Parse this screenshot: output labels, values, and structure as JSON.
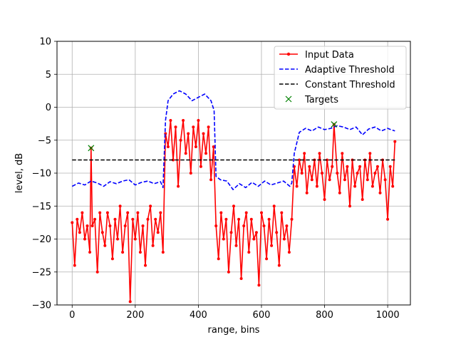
{
  "chart_data": {
    "type": "line",
    "title": "",
    "xlabel": "range, bins",
    "ylabel": "level, dB",
    "xlim": [
      -48,
      1072
    ],
    "ylim": [
      -30,
      10
    ],
    "xticks": [
      0,
      200,
      400,
      600,
      800,
      1000
    ],
    "yticks": [
      -30,
      -25,
      -20,
      -15,
      -10,
      -5,
      0,
      5,
      10
    ],
    "xtick_labels": [
      "0",
      "200",
      "400",
      "600",
      "800",
      "1000"
    ],
    "ytick_labels": [
      "−30",
      "−25",
      "−20",
      "−15",
      "−10",
      "−5",
      "0",
      "5",
      "10"
    ],
    "grid": true,
    "legend_position": "top-right",
    "series": [
      {
        "name": "Input Data",
        "style": "solid-line-dot-markers",
        "color": "#ff0000",
        "x": [
          0,
          8,
          16,
          24,
          32,
          40,
          48,
          56,
          60,
          64,
          72,
          80,
          88,
          96,
          104,
          112,
          120,
          128,
          136,
          144,
          152,
          160,
          168,
          176,
          184,
          192,
          200,
          208,
          216,
          224,
          232,
          240,
          248,
          256,
          264,
          272,
          280,
          288,
          296,
          304,
          312,
          320,
          328,
          336,
          344,
          352,
          360,
          368,
          376,
          384,
          392,
          400,
          408,
          416,
          424,
          432,
          440,
          448,
          456,
          464,
          472,
          480,
          488,
          496,
          504,
          512,
          520,
          528,
          536,
          544,
          552,
          560,
          568,
          576,
          584,
          592,
          600,
          608,
          616,
          624,
          632,
          640,
          648,
          656,
          664,
          672,
          680,
          688,
          696,
          704,
          712,
          720,
          728,
          736,
          744,
          752,
          760,
          768,
          776,
          784,
          792,
          800,
          808,
          816,
          824,
          830,
          840,
          848,
          856,
          864,
          872,
          880,
          888,
          896,
          904,
          912,
          920,
          928,
          936,
          944,
          952,
          960,
          968,
          976,
          984,
          992,
          1000,
          1008,
          1016,
          1023
        ],
        "values": [
          -17.5,
          -24,
          -17,
          -19,
          -16,
          -20,
          -18,
          -22,
          -6.2,
          -18,
          -17,
          -25,
          -16,
          -19,
          -21,
          -16,
          -18,
          -23,
          -17,
          -20,
          -15,
          -22,
          -18,
          -16,
          -29.5,
          -17,
          -20,
          -16,
          -22,
          -18,
          -24,
          -17,
          -15,
          -21,
          -17,
          -19,
          -16,
          -22,
          -4,
          -6,
          -2,
          -8,
          -3,
          -12,
          -5,
          -2,
          -7,
          -4,
          -10,
          -3,
          -6,
          -2,
          -9,
          -4,
          -7,
          -3,
          -11,
          -6,
          -18,
          -23,
          -16,
          -20,
          -17,
          -25,
          -19,
          -15,
          -21,
          -17,
          -26,
          -18,
          -16,
          -22,
          -17,
          -20,
          -19,
          -27,
          -16,
          -18,
          -23,
          -17,
          -21,
          -15,
          -19,
          -24,
          -16,
          -20,
          -18,
          -22,
          -17,
          -9,
          -12,
          -8,
          -10,
          -7,
          -13,
          -9,
          -11,
          -8,
          -12,
          -7,
          -10,
          -14,
          -8,
          -11,
          -9,
          -2.6,
          -10,
          -13,
          -7,
          -11,
          -9,
          -15,
          -8,
          -12,
          -10,
          -9,
          -14,
          -8,
          -11,
          -7,
          -12,
          -10,
          -9,
          -13,
          -8,
          -11,
          -17,
          -9,
          -12,
          -5.2
        ]
      },
      {
        "name": "Adaptive Threshold",
        "style": "dashed",
        "color": "#0000ff",
        "x": [
          0,
          20,
          40,
          60,
          80,
          100,
          120,
          140,
          160,
          180,
          200,
          220,
          240,
          260,
          280,
          288,
          296,
          304,
          320,
          340,
          360,
          380,
          400,
          420,
          440,
          450,
          456,
          470,
          490,
          510,
          530,
          550,
          570,
          590,
          610,
          630,
          650,
          670,
          690,
          696,
          704,
          720,
          740,
          760,
          780,
          800,
          820,
          840,
          860,
          880,
          900,
          920,
          940,
          960,
          980,
          1000,
          1010,
          1023
        ],
        "values": [
          -12,
          -11.5,
          -11.8,
          -11.2,
          -11.5,
          -12,
          -11.3,
          -11.6,
          -11.2,
          -11,
          -11.8,
          -11.4,
          -11.2,
          -11.6,
          -11.3,
          -12.2,
          -2,
          1,
          2,
          2.5,
          2,
          1,
          1.5,
          2,
          1,
          -0.5,
          -10.5,
          -11,
          -11.2,
          -12.5,
          -11.6,
          -12.2,
          -11.4,
          -12,
          -11.2,
          -11.8,
          -11.5,
          -11.2,
          -12,
          -11.5,
          -7,
          -3.8,
          -3.2,
          -3.6,
          -3,
          -3.4,
          -3.2,
          -2.8,
          -3,
          -3.4,
          -3,
          -4.2,
          -3.3,
          -3,
          -3.6,
          -3.2,
          -3.4,
          -3.6
        ]
      },
      {
        "name": "Constant Threshold",
        "style": "dashed",
        "color": "#000000",
        "x": [
          0,
          1023
        ],
        "values": [
          -8,
          -8
        ]
      },
      {
        "name": "Targets",
        "style": "x-markers",
        "color": "#008000",
        "x": [
          60,
          830
        ],
        "values": [
          -6.2,
          -2.6
        ]
      }
    ]
  }
}
